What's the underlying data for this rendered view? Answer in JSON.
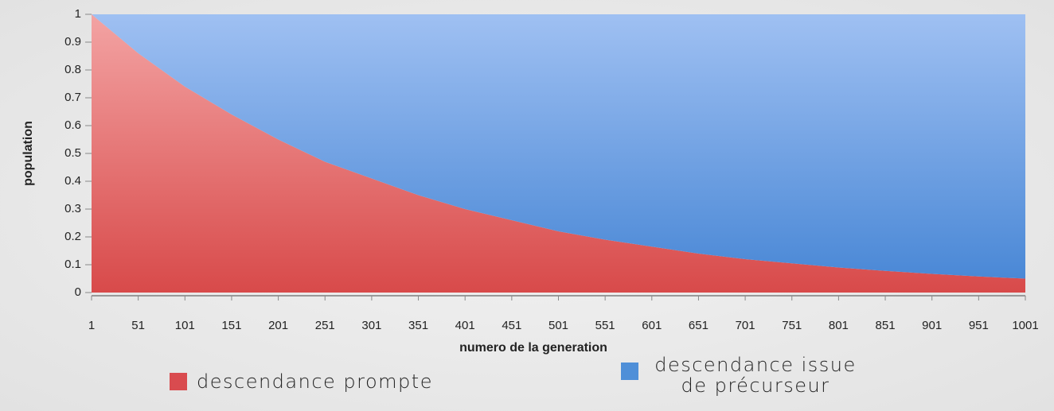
{
  "chart_data": {
    "type": "stacked_area",
    "x": [
      1,
      51,
      101,
      151,
      201,
      251,
      301,
      351,
      401,
      451,
      501,
      551,
      601,
      651,
      701,
      751,
      801,
      851,
      901,
      951,
      1001
    ],
    "xlim": [
      1,
      1001
    ],
    "xticks": [
      1,
      51,
      101,
      151,
      201,
      251,
      301,
      351,
      401,
      451,
      501,
      551,
      601,
      651,
      701,
      751,
      801,
      851,
      901,
      951,
      1001
    ],
    "ylim": [
      0,
      1
    ],
    "yticks": [
      0,
      0.1,
      0.2,
      0.3,
      0.4,
      0.5,
      0.6,
      0.7,
      0.8,
      0.9,
      1
    ],
    "x_label": "numero de la generation",
    "y_label": "population",
    "series": [
      {
        "name": "descendance prompte",
        "color": "#d94b4f",
        "values": [
          1.0,
          0.86,
          0.74,
          0.64,
          0.55,
          0.47,
          0.41,
          0.35,
          0.3,
          0.26,
          0.22,
          0.19,
          0.165,
          0.14,
          0.12,
          0.105,
          0.09,
          0.078,
          0.067,
          0.058,
          0.05
        ]
      },
      {
        "name": "descendance issue de précurseur",
        "color": "#4f8fd8",
        "values": [
          0.0,
          0.14,
          0.26,
          0.36,
          0.45,
          0.53,
          0.59,
          0.65,
          0.7,
          0.74,
          0.78,
          0.81,
          0.835,
          0.86,
          0.88,
          0.895,
          0.91,
          0.922,
          0.933,
          0.942,
          0.95
        ]
      }
    ]
  }
}
